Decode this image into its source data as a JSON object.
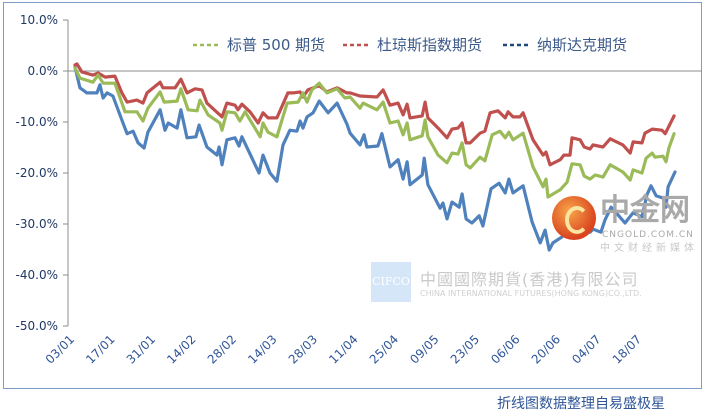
{
  "chart_data": {
    "type": "line",
    "title": "",
    "xlabel": "",
    "ylabel": "",
    "x_unit": "days since 03/01",
    "xlim": [
      0,
      208
    ],
    "ylim": [
      -50,
      10
    ],
    "yticks": [
      10,
      0,
      -10,
      -20,
      -30,
      -40,
      -50
    ],
    "ytick_labels": [
      "10.0%",
      "0.0%",
      "-10.0%",
      "-20.0%",
      "-30.0%",
      "-40.0%",
      "-50.0%"
    ],
    "xtick_step_days": 14,
    "xtick_labels": [
      "03/01",
      "17/01",
      "31/01",
      "14/02",
      "28/02",
      "14/03",
      "28/03",
      "11/04",
      "25/04",
      "09/05",
      "23/05",
      "06/06",
      "20/06",
      "04/07",
      "18/07"
    ],
    "grid": false,
    "legend_position": "top-right",
    "series": [
      {
        "name": "标普 500 期货",
        "color": "#9bbb59",
        "legend_color": "#9bbb59",
        "points": [
          [
            0,
            0.6
          ],
          [
            1.7,
            -1.4
          ],
          [
            6.2,
            -2.2
          ],
          [
            8,
            -0.8
          ],
          [
            9.7,
            -2.4
          ],
          [
            13.8,
            -2.4
          ],
          [
            17.3,
            -8
          ],
          [
            21.4,
            -8
          ],
          [
            23.5,
            -9.8
          ],
          [
            25.2,
            -7.3
          ],
          [
            29.4,
            -4.1
          ],
          [
            30.8,
            -6.1
          ],
          [
            35.3,
            -5.9
          ],
          [
            36.6,
            -3.5
          ],
          [
            39.1,
            -7.6
          ],
          [
            42.2,
            -7.8
          ],
          [
            43.2,
            -5.7
          ],
          [
            46,
            -8.6
          ],
          [
            50.1,
            -10.2
          ],
          [
            50.8,
            -11.6
          ],
          [
            52.5,
            -8
          ],
          [
            55.3,
            -8.2
          ],
          [
            57,
            -9.8
          ],
          [
            58.8,
            -8
          ],
          [
            64,
            -12.9
          ],
          [
            65,
            -10.2
          ],
          [
            66.7,
            -12
          ],
          [
            69.8,
            -12.9
          ],
          [
            73.3,
            -6.3
          ],
          [
            77.1,
            -6.1
          ],
          [
            78.8,
            -4.3
          ],
          [
            80.2,
            -6.1
          ],
          [
            81.9,
            -3.7
          ],
          [
            84.4,
            -2.4
          ],
          [
            87.1,
            -4.3
          ],
          [
            90.6,
            -3.5
          ],
          [
            93.3,
            -5.3
          ],
          [
            95.1,
            -5.1
          ],
          [
            98.5,
            -7.3
          ],
          [
            99.6,
            -6.3
          ],
          [
            104.4,
            -7.6
          ],
          [
            106.5,
            -6.1
          ],
          [
            108.9,
            -10.2
          ],
          [
            111.7,
            -9.8
          ],
          [
            113.4,
            -12.5
          ],
          [
            114.8,
            -10.2
          ],
          [
            115.8,
            -13.5
          ],
          [
            120,
            -12.7
          ],
          [
            121,
            -9.6
          ],
          [
            122,
            -12.9
          ],
          [
            125.5,
            -16.5
          ],
          [
            128.6,
            -18
          ],
          [
            130.3,
            -16.1
          ],
          [
            132.4,
            -16.3
          ],
          [
            133.8,
            -14.1
          ],
          [
            135.2,
            -18.4
          ],
          [
            136.6,
            -19
          ],
          [
            140,
            -16.9
          ],
          [
            141.7,
            -17.6
          ],
          [
            144.2,
            -12.5
          ],
          [
            146.9,
            -11.8
          ],
          [
            148.7,
            -13.1
          ],
          [
            150,
            -12
          ],
          [
            151.4,
            -13.5
          ],
          [
            154.9,
            -12.2
          ],
          [
            158.3,
            -18.8
          ],
          [
            161.8,
            -22.7
          ],
          [
            162.8,
            -21.2
          ],
          [
            163.5,
            -24.7
          ],
          [
            167.7,
            -23.3
          ],
          [
            170.1,
            -21.8
          ],
          [
            171.8,
            -18.2
          ],
          [
            174.6,
            -18.4
          ],
          [
            176,
            -20.6
          ],
          [
            178,
            -21.2
          ],
          [
            179.8,
            -20.4
          ],
          [
            182.5,
            -20.8
          ],
          [
            185,
            -18.4
          ],
          [
            189.4,
            -19.8
          ],
          [
            191.9,
            -21.4
          ],
          [
            192.9,
            -19.4
          ],
          [
            196,
            -20
          ],
          [
            197.4,
            -17.1
          ],
          [
            199.5,
            -16.1
          ],
          [
            200.5,
            -16.9
          ],
          [
            203.3,
            -16.7
          ],
          [
            204.3,
            -17.8
          ],
          [
            205.3,
            -15.1
          ],
          [
            207.1,
            -12.3
          ]
        ]
      },
      {
        "name": "杜琼斯指数期货",
        "color": "#c0504d",
        "legend_color": "#c0504d",
        "points": [
          [
            0,
            1.2
          ],
          [
            0.7,
            1.4
          ],
          [
            2.4,
            -0.2
          ],
          [
            6.2,
            -0.8
          ],
          [
            8,
            -0.4
          ],
          [
            10.4,
            -1.2
          ],
          [
            13.8,
            -1
          ],
          [
            16.2,
            -4.3
          ],
          [
            18,
            -6.1
          ],
          [
            21.4,
            -5.7
          ],
          [
            23.5,
            -6.3
          ],
          [
            24.9,
            -4.3
          ],
          [
            29.4,
            -2.2
          ],
          [
            30.4,
            -3.3
          ],
          [
            34.6,
            -3.3
          ],
          [
            36.6,
            -1.6
          ],
          [
            38.7,
            -4.3
          ],
          [
            41.5,
            -3.5
          ],
          [
            43.9,
            -3.7
          ],
          [
            45.6,
            -6.3
          ],
          [
            50.1,
            -8.6
          ],
          [
            50.8,
            -9
          ],
          [
            52.5,
            -6.3
          ],
          [
            55.3,
            -6.7
          ],
          [
            56.3,
            -7.6
          ],
          [
            57.7,
            -6.5
          ],
          [
            60.5,
            -8
          ],
          [
            63.3,
            -10.2
          ],
          [
            65,
            -8.2
          ],
          [
            66.7,
            -9.2
          ],
          [
            69.8,
            -9.2
          ],
          [
            73.6,
            -4.3
          ],
          [
            75.4,
            -4.3
          ],
          [
            77.8,
            -4.1
          ],
          [
            78.8,
            -5.1
          ],
          [
            80.5,
            -3.7
          ],
          [
            84.4,
            -2.9
          ],
          [
            87.1,
            -4.1
          ],
          [
            90.6,
            -3.3
          ],
          [
            94,
            -4.3
          ],
          [
            95.1,
            -4.3
          ],
          [
            98.5,
            -4.9
          ],
          [
            104.4,
            -5.1
          ],
          [
            106.5,
            -3.7
          ],
          [
            108.9,
            -6.7
          ],
          [
            111.7,
            -6.3
          ],
          [
            113.4,
            -8.6
          ],
          [
            114.8,
            -6.5
          ],
          [
            115.8,
            -9.2
          ],
          [
            120,
            -8.8
          ],
          [
            121,
            -6.1
          ],
          [
            122,
            -9.2
          ],
          [
            125.5,
            -11.2
          ],
          [
            128.6,
            -13.1
          ],
          [
            130.3,
            -11.4
          ],
          [
            132.4,
            -11.2
          ],
          [
            133.8,
            -10.2
          ],
          [
            135.2,
            -14.1
          ],
          [
            136.6,
            -14.1
          ],
          [
            140,
            -12.2
          ],
          [
            141.7,
            -11.8
          ],
          [
            143.5,
            -8.2
          ],
          [
            146.2,
            -7.8
          ],
          [
            148.7,
            -9.2
          ],
          [
            149.7,
            -8
          ],
          [
            151.4,
            -9
          ],
          [
            153.8,
            -9
          ],
          [
            154.9,
            -8.2
          ],
          [
            158.3,
            -13.5
          ],
          [
            161.8,
            -16.5
          ],
          [
            162.8,
            -15.9
          ],
          [
            164.2,
            -18.4
          ],
          [
            167.7,
            -17.4
          ],
          [
            169,
            -16.5
          ],
          [
            171.1,
            -16.5
          ],
          [
            171.8,
            -13.1
          ],
          [
            174.6,
            -13.5
          ],
          [
            176,
            -14.9
          ],
          [
            178,
            -15.3
          ],
          [
            179.1,
            -14.5
          ],
          [
            182.5,
            -14.9
          ],
          [
            185,
            -13.3
          ],
          [
            189.4,
            -14.5
          ],
          [
            191.9,
            -16.1
          ],
          [
            192.9,
            -13.9
          ],
          [
            196,
            -14.1
          ],
          [
            197,
            -12.2
          ],
          [
            199.5,
            -11.4
          ],
          [
            202.9,
            -11.6
          ],
          [
            204,
            -12.3
          ],
          [
            207.1,
            -8.8
          ]
        ]
      },
      {
        "name": "纳斯达克期货",
        "color": "#4f81bd",
        "legend_color": "#1f497d",
        "points": [
          [
            0,
            0.8
          ],
          [
            1.7,
            -3.3
          ],
          [
            4.1,
            -4.3
          ],
          [
            7.6,
            -4.3
          ],
          [
            8.6,
            -2.7
          ],
          [
            9.7,
            -5.3
          ],
          [
            11.1,
            -4.3
          ],
          [
            13.1,
            -4.9
          ],
          [
            16.6,
            -10.2
          ],
          [
            18,
            -12.3
          ],
          [
            20.1,
            -11.8
          ],
          [
            21.8,
            -14.1
          ],
          [
            23.9,
            -15.1
          ],
          [
            25.2,
            -12
          ],
          [
            29.4,
            -7.6
          ],
          [
            31.1,
            -11.6
          ],
          [
            32.2,
            -10.2
          ],
          [
            35.3,
            -11.2
          ],
          [
            36.6,
            -7.6
          ],
          [
            38.7,
            -13.1
          ],
          [
            41.8,
            -12.9
          ],
          [
            42.9,
            -10.6
          ],
          [
            45.6,
            -14.9
          ],
          [
            49.1,
            -16.5
          ],
          [
            49.8,
            -14.9
          ],
          [
            50.8,
            -18.4
          ],
          [
            52.5,
            -13.5
          ],
          [
            55.3,
            -13.1
          ],
          [
            56.7,
            -14.7
          ],
          [
            57.7,
            -12.9
          ],
          [
            63.6,
            -20
          ],
          [
            65,
            -16.5
          ],
          [
            67.4,
            -20
          ],
          [
            69.8,
            -21.6
          ],
          [
            71.9,
            -14.5
          ],
          [
            74.3,
            -11.6
          ],
          [
            76.7,
            -11.8
          ],
          [
            77.8,
            -9.8
          ],
          [
            78.8,
            -11.2
          ],
          [
            80.2,
            -9
          ],
          [
            82.3,
            -8.2
          ],
          [
            84.4,
            -5.9
          ],
          [
            87.5,
            -8.2
          ],
          [
            90.6,
            -6.3
          ],
          [
            94,
            -10.4
          ],
          [
            95.1,
            -12.2
          ],
          [
            98.5,
            -14.5
          ],
          [
            99.9,
            -12.5
          ],
          [
            100.9,
            -14.9
          ],
          [
            104.7,
            -14.7
          ],
          [
            106.1,
            -12.3
          ],
          [
            108.9,
            -18.8
          ],
          [
            111.7,
            -17.4
          ],
          [
            113.4,
            -21.2
          ],
          [
            114.8,
            -17.8
          ],
          [
            115.8,
            -22.3
          ],
          [
            120,
            -20.4
          ],
          [
            120.7,
            -17.1
          ],
          [
            122,
            -22.3
          ],
          [
            126.2,
            -26.9
          ],
          [
            127.2,
            -25.9
          ],
          [
            128.6,
            -29
          ],
          [
            130.3,
            -25.7
          ],
          [
            132.8,
            -26.7
          ],
          [
            133.8,
            -24.1
          ],
          [
            135.2,
            -29
          ],
          [
            137.2,
            -29.8
          ],
          [
            139.7,
            -28.4
          ],
          [
            141,
            -30.4
          ],
          [
            143.8,
            -23.1
          ],
          [
            146.6,
            -22
          ],
          [
            148.7,
            -23.9
          ],
          [
            150,
            -21.2
          ],
          [
            151.4,
            -23.9
          ],
          [
            154.9,
            -22.5
          ],
          [
            158,
            -29.6
          ],
          [
            160.8,
            -33.7
          ],
          [
            162.5,
            -31.2
          ],
          [
            163.9,
            -35.1
          ],
          [
            165.2,
            -33.7
          ],
          [
            168.4,
            -32.5
          ],
          [
            169.4,
            -31.2
          ],
          [
            170.8,
            -30.2
          ],
          [
            171.8,
            -26.9
          ],
          [
            174.6,
            -27.6
          ],
          [
            176,
            -30.6
          ],
          [
            178,
            -31.6
          ],
          [
            179.1,
            -31
          ],
          [
            181.8,
            -31.6
          ],
          [
            183.2,
            -29.2
          ],
          [
            185.3,
            -26.7
          ],
          [
            187.4,
            -28
          ],
          [
            190.1,
            -29.8
          ],
          [
            192.9,
            -27.8
          ],
          [
            196,
            -28.6
          ],
          [
            197.7,
            -24.3
          ],
          [
            199.1,
            -22.5
          ],
          [
            200.9,
            -24.5
          ],
          [
            203.3,
            -24.9
          ],
          [
            204.3,
            -26.7
          ],
          [
            205,
            -22.7
          ],
          [
            207.4,
            -19.8
          ]
        ]
      }
    ]
  },
  "watermarks": {
    "cifco_logo": "CIFCO",
    "cifco_name_cn": "中國國際期貨(香港)有限公司",
    "cifco_name_en": "CHINA INTERNATIONAL FUTURES(HONG KONG)CO.,LTD.",
    "cngold_name": "中金网",
    "cngold_url": "CNGOLD.COM.CN",
    "cngold_slogan": "中文财经新媒体"
  },
  "footer": "折线图数据整理自易盛极星"
}
